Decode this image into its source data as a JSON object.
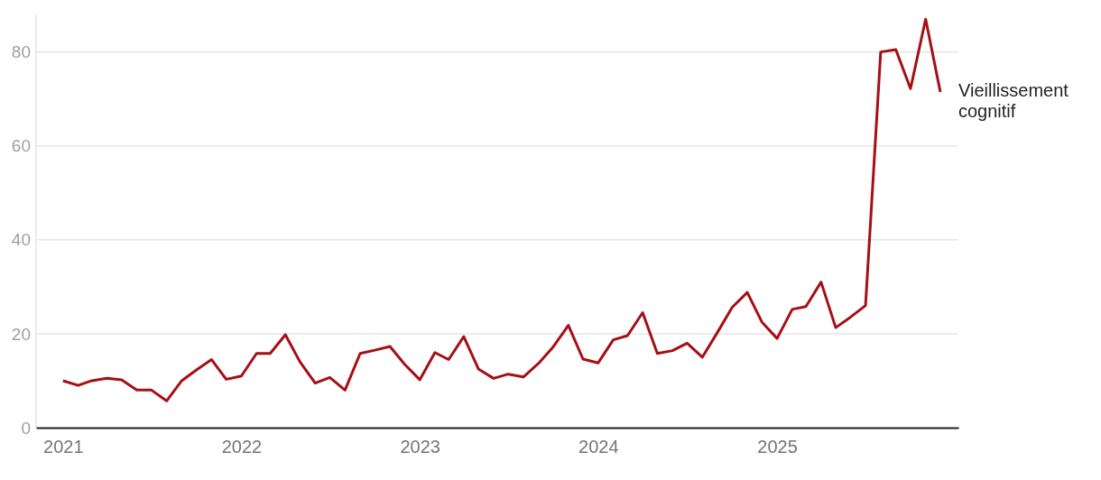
{
  "chart_data": {
    "type": "line",
    "x": [
      "2021-01",
      "2021-02",
      "2021-03",
      "2021-04",
      "2021-05",
      "2021-06",
      "2021-07",
      "2021-08",
      "2021-09",
      "2021-10",
      "2021-11",
      "2021-12",
      "2022-01",
      "2022-02",
      "2022-03",
      "2022-04",
      "2022-05",
      "2022-06",
      "2022-07",
      "2022-08",
      "2022-09",
      "2022-10",
      "2022-11",
      "2022-12",
      "2023-01",
      "2023-02",
      "2023-03",
      "2023-04",
      "2023-05",
      "2023-06",
      "2023-07",
      "2023-08",
      "2023-09",
      "2023-10",
      "2023-11",
      "2023-12",
      "2024-01",
      "2024-02",
      "2024-03",
      "2024-04",
      "2024-05",
      "2024-06",
      "2024-07",
      "2024-08",
      "2024-09",
      "2024-10",
      "2024-11",
      "2024-12",
      "2025-01",
      "2025-02",
      "2025-03",
      "2025-04",
      "2025-05",
      "2025-06",
      "2025-07",
      "2025-08",
      "2025-09",
      "2025-10",
      "2025-11",
      "2025-12"
    ],
    "series": [
      {
        "name": "Vieillissement cognitif",
        "color": "#a50f15",
        "values": [
          10,
          9,
          10,
          10.5,
          10.2,
          8,
          8,
          5.7,
          10,
          12.3,
          14.5,
          10.3,
          11,
          15.8,
          15.8,
          19.8,
          14,
          9.5,
          10.7,
          8,
          15.8,
          16.5,
          17.3,
          13.5,
          10.2,
          16,
          14.5,
          19.4,
          12.5,
          10.5,
          11.4,
          10.8,
          13.7,
          17.2,
          21.8,
          14.6,
          13.8,
          18.7,
          19.6,
          24.5,
          15.8,
          16.4,
          18,
          15,
          20.3,
          25.6,
          28.8,
          22.5,
          19,
          25.2,
          25.8,
          31,
          21.3,
          23.6,
          26,
          80,
          80.5,
          72.2,
          87,
          71.5
        ]
      }
    ],
    "xlim": [
      "2020-11-07",
      "2026-01-07"
    ],
    "xticks": [
      {
        "value": "2021-01-01",
        "label": "2021"
      },
      {
        "value": "2022-01-01",
        "label": "2022"
      },
      {
        "value": "2023-01-01",
        "label": "2023"
      },
      {
        "value": "2024-01-01",
        "label": "2024"
      },
      {
        "value": "2025-01-01",
        "label": "2025"
      }
    ],
    "ylim": [
      0,
      88
    ],
    "yticks": [
      0,
      20,
      40,
      60,
      80
    ],
    "grid": "y",
    "marker": "none",
    "line_style": "solid"
  }
}
